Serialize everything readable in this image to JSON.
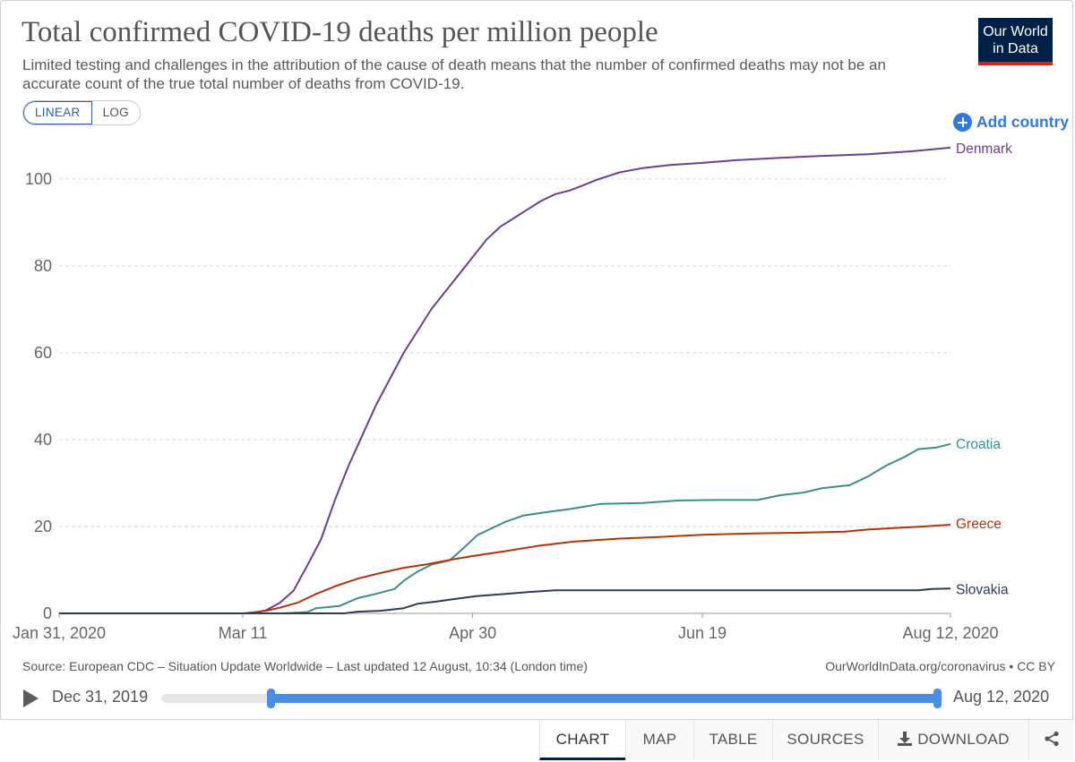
{
  "header": {
    "title": "Total confirmed COVID-19 deaths per million people",
    "subtitle": "Limited testing and challenges in the attribution of the cause of death means that the number of confirmed deaths may not be an accurate count of the true total number of deaths from COVID-19.",
    "logo_line1": "Our World",
    "logo_line2": "in Data",
    "logo_colors": {
      "background": "#002147",
      "stripe": "#ce261e"
    }
  },
  "controls": {
    "scale_linear": "LINEAR",
    "scale_log": "LOG",
    "selected_scale": "LINEAR",
    "add_country": "Add country"
  },
  "chart_data": {
    "type": "line",
    "title": "Total confirmed COVID-19 deaths per million people",
    "xlabel": "",
    "ylabel": "",
    "x_ticks": [
      "Jan 31, 2020",
      "Mar 11",
      "Apr 30",
      "Jun 19",
      "Aug 12, 2020"
    ],
    "y_ticks": [
      0,
      20,
      40,
      60,
      80,
      100
    ],
    "xlim": [
      "2020-01-31",
      "2020-08-12"
    ],
    "ylim": [
      0,
      108
    ],
    "grid": "horizontal dashed",
    "legend": "inline labels at line ends",
    "series": [
      {
        "name": "Denmark",
        "color": "#6d3e91",
        "points": [
          [
            "2020-01-31",
            0
          ],
          [
            "2020-03-13",
            0
          ],
          [
            "2020-03-16",
            0.7
          ],
          [
            "2020-03-19",
            2.4
          ],
          [
            "2020-03-22",
            5.2
          ],
          [
            "2020-03-25",
            11
          ],
          [
            "2020-03-28",
            17
          ],
          [
            "2020-03-31",
            26
          ],
          [
            "2020-04-03",
            34
          ],
          [
            "2020-04-06",
            41
          ],
          [
            "2020-04-09",
            48
          ],
          [
            "2020-04-12",
            54
          ],
          [
            "2020-04-15",
            60
          ],
          [
            "2020-04-18",
            65
          ],
          [
            "2020-04-21",
            70
          ],
          [
            "2020-04-24",
            74
          ],
          [
            "2020-04-27",
            78
          ],
          [
            "2020-04-30",
            82
          ],
          [
            "2020-05-03",
            86
          ],
          [
            "2020-05-06",
            89
          ],
          [
            "2020-05-09",
            91
          ],
          [
            "2020-05-12",
            93
          ],
          [
            "2020-05-15",
            95
          ],
          [
            "2020-05-18",
            96.5
          ],
          [
            "2020-05-21",
            97.3
          ],
          [
            "2020-05-24",
            98.5
          ],
          [
            "2020-05-27",
            99.8
          ],
          [
            "2020-06-01",
            101.5
          ],
          [
            "2020-06-06",
            102.5
          ],
          [
            "2020-06-12",
            103.2
          ],
          [
            "2020-06-19",
            103.7
          ],
          [
            "2020-06-26",
            104.3
          ],
          [
            "2020-07-05",
            104.8
          ],
          [
            "2020-07-15",
            105.3
          ],
          [
            "2020-07-25",
            105.7
          ],
          [
            "2020-08-04",
            106.4
          ],
          [
            "2020-08-12",
            107.2
          ]
        ]
      },
      {
        "name": "Croatia",
        "color": "#3b8e87",
        "points": [
          [
            "2020-01-31",
            0
          ],
          [
            "2020-03-20",
            0
          ],
          [
            "2020-03-25",
            0.3
          ],
          [
            "2020-03-27",
            1.2
          ],
          [
            "2020-04-01",
            1.7
          ],
          [
            "2020-04-05",
            3.5
          ],
          [
            "2020-04-09",
            4.5
          ],
          [
            "2020-04-13",
            5.6
          ],
          [
            "2020-04-15",
            7.5
          ],
          [
            "2020-04-18",
            9.6
          ],
          [
            "2020-04-21",
            11.2
          ],
          [
            "2020-04-25",
            12.2
          ],
          [
            "2020-04-28",
            15
          ],
          [
            "2020-05-01",
            18
          ],
          [
            "2020-05-04",
            19.5
          ],
          [
            "2020-05-07",
            21
          ],
          [
            "2020-05-11",
            22.5
          ],
          [
            "2020-05-16",
            23.3
          ],
          [
            "2020-05-21",
            24
          ],
          [
            "2020-05-28",
            25.2
          ],
          [
            "2020-06-06",
            25.4
          ],
          [
            "2020-06-14",
            26
          ],
          [
            "2020-06-22",
            26.1
          ],
          [
            "2020-07-01",
            26.1
          ],
          [
            "2020-07-06",
            27.2
          ],
          [
            "2020-07-11",
            27.8
          ],
          [
            "2020-07-15",
            28.8
          ],
          [
            "2020-07-21",
            29.5
          ],
          [
            "2020-07-25",
            31.5
          ],
          [
            "2020-07-29",
            34
          ],
          [
            "2020-08-02",
            36
          ],
          [
            "2020-08-05",
            37.8
          ],
          [
            "2020-08-09",
            38.2
          ],
          [
            "2020-08-12",
            39
          ]
        ]
      },
      {
        "name": "Greece",
        "color": "#b13507",
        "points": [
          [
            "2020-01-31",
            0
          ],
          [
            "2020-03-11",
            0
          ],
          [
            "2020-03-13",
            0.2
          ],
          [
            "2020-03-16",
            0.6
          ],
          [
            "2020-03-19",
            1.3
          ],
          [
            "2020-03-23",
            2.5
          ],
          [
            "2020-03-27",
            4.5
          ],
          [
            "2020-03-31",
            6.2
          ],
          [
            "2020-04-05",
            8
          ],
          [
            "2020-04-10",
            9.3
          ],
          [
            "2020-04-15",
            10.5
          ],
          [
            "2020-04-20",
            11.3
          ],
          [
            "2020-04-25",
            12.3
          ],
          [
            "2020-04-30",
            13.2
          ],
          [
            "2020-05-07",
            14.3
          ],
          [
            "2020-05-14",
            15.5
          ],
          [
            "2020-05-22",
            16.5
          ],
          [
            "2020-06-01",
            17.2
          ],
          [
            "2020-06-10",
            17.6
          ],
          [
            "2020-06-19",
            18.1
          ],
          [
            "2020-06-30",
            18.4
          ],
          [
            "2020-07-12",
            18.6
          ],
          [
            "2020-07-20",
            18.8
          ],
          [
            "2020-07-25",
            19.3
          ],
          [
            "2020-08-01",
            19.7
          ],
          [
            "2020-08-06",
            20
          ],
          [
            "2020-08-12",
            20.4
          ]
        ]
      },
      {
        "name": "Slovakia",
        "color": "#2d3b59",
        "points": [
          [
            "2020-01-31",
            0
          ],
          [
            "2020-04-02",
            0
          ],
          [
            "2020-04-05",
            0.4
          ],
          [
            "2020-04-10",
            0.6
          ],
          [
            "2020-04-15",
            1.2
          ],
          [
            "2020-04-18",
            2.2
          ],
          [
            "2020-04-22",
            2.7
          ],
          [
            "2020-04-26",
            3.3
          ],
          [
            "2020-05-01",
            4
          ],
          [
            "2020-05-06",
            4.4
          ],
          [
            "2020-05-12",
            4.9
          ],
          [
            "2020-05-18",
            5.3
          ],
          [
            "2020-06-10",
            5.3
          ],
          [
            "2020-07-10",
            5.3
          ],
          [
            "2020-08-05",
            5.3
          ],
          [
            "2020-08-08",
            5.6
          ],
          [
            "2020-08-12",
            5.7
          ]
        ]
      }
    ]
  },
  "footer": {
    "source": "Source: European CDC – Situation Update Worldwide – Last updated 12 August, 10:34 (London time)",
    "license": "OurWorldInData.org/coronavirus • CC BY"
  },
  "timeline": {
    "start_label": "Dec 31, 2019",
    "end_label": "Aug 12, 2020",
    "range_start_fraction": 0.14,
    "range_end_fraction": 1.0
  },
  "tabs": {
    "chart": "CHART",
    "map": "MAP",
    "table": "TABLE",
    "sources": "SOURCES",
    "download": "DOWNLOAD",
    "active": "CHART"
  }
}
